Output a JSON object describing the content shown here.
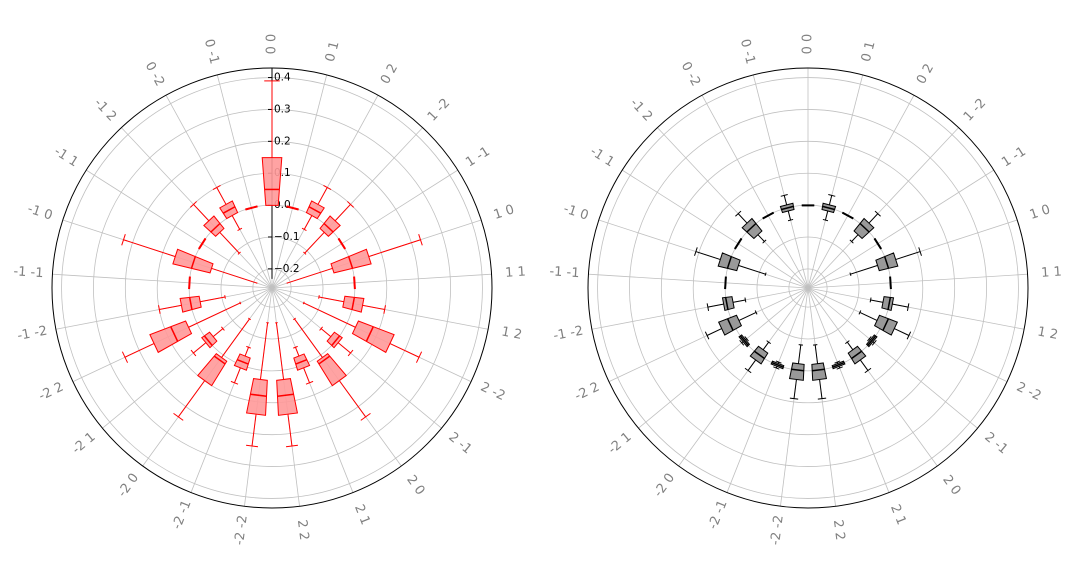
{
  "chart_data": [
    {
      "type": "boxplot-polar",
      "title": "",
      "categories": [
        "0 0",
        "0 1",
        "0 2",
        "1 -2",
        "1 -1",
        "1 0",
        "1 1",
        "1 2",
        "2 -2",
        "2 -1",
        "2 0",
        "2 1",
        "2 2",
        "-2 -2",
        "-2 -1",
        "-2 0",
        "-2 1",
        "-2 2",
        "-1 -2",
        "-1 -1",
        "-1 0",
        "-1 1",
        "-1 2",
        "0 -2",
        "0 -1"
      ],
      "stats_order": [
        "whislo",
        "q1",
        "median",
        "q3",
        "whishi"
      ],
      "boxes": [
        [
          0,
          0,
          0.05,
          0.15,
          0.39
        ],
        [
          0,
          0,
          0,
          0,
          0
        ],
        [
          -0.05,
          0,
          0.02,
          0.04,
          0.1
        ],
        [
          -0.11,
          -0.02,
          0,
          0.03,
          0.1
        ],
        [
          0,
          0,
          0,
          0,
          0
        ],
        [
          -0.21,
          -0.06,
          0,
          0.06,
          0.23
        ],
        [
          0,
          0,
          0,
          0,
          0
        ],
        [
          -0.11,
          -0.03,
          0,
          0.03,
          0.1
        ],
        [
          -0.15,
          0.03,
          0.08,
          0.15,
          0.25
        ],
        [
          -0.06,
          -0.02,
          0,
          0.01,
          0.06
        ],
        [
          -0.14,
          0.01,
          0.02,
          0.1,
          0.24
        ],
        [
          -0.06,
          -0.03,
          -0.01,
          0.01,
          0.06
        ],
        [
          -0.15,
          0.03,
          0.08,
          0.14,
          0.24
        ],
        [
          -0.15,
          0.03,
          0.08,
          0.14,
          0.24
        ],
        [
          -0.06,
          -0.03,
          -0.01,
          0.01,
          0.06
        ],
        [
          -0.14,
          0.01,
          0.02,
          0.1,
          0.24
        ],
        [
          -0.06,
          -0.02,
          0,
          0.01,
          0.06
        ],
        [
          -0.15,
          0.03,
          0.08,
          0.15,
          0.25
        ],
        [
          -0.11,
          -0.03,
          0,
          0.03,
          0.1
        ],
        [
          0,
          0,
          0,
          0,
          0
        ],
        [
          -0.21,
          -0.06,
          0,
          0.06,
          0.23
        ],
        [
          0,
          0,
          0,
          0,
          0
        ],
        [
          -0.11,
          -0.02,
          0,
          0.03,
          0.1
        ],
        [
          -0.05,
          0,
          0.02,
          0.04,
          0.1
        ],
        [
          0,
          0,
          0,
          0,
          0
        ]
      ],
      "rlim": [
        -0.26,
        0.43
      ],
      "rticks": [
        "−0.2",
        "−0.1",
        "0.0",
        "0.1",
        "0.2",
        "0.3",
        "0.4"
      ],
      "rtick_values": [
        -0.2,
        -0.1,
        0.0,
        0.1,
        0.2,
        0.3,
        0.4
      ],
      "show_rtick_labels": true,
      "grid": true,
      "colors": {
        "edge": "#ff0000",
        "fill": "#ff9999",
        "grid": "#c0c0c0",
        "label": "#808080"
      }
    },
    {
      "type": "boxplot-polar",
      "title": "",
      "categories": [
        "0 0",
        "0 1",
        "0 2",
        "1 -2",
        "1 -1",
        "1 0",
        "1 1",
        "1 2",
        "2 -2",
        "2 -1",
        "2 0",
        "2 1",
        "2 2",
        "-2 -2",
        "-2 -1",
        "-2 0",
        "-2 1",
        "-2 2",
        "-1 -2",
        "-1 -1",
        "-1 0",
        "-1 1",
        "-1 2",
        "0 -2",
        "0 -1"
      ],
      "stats_order": [
        "whislo",
        "q1",
        "median",
        "q3",
        "whishi"
      ],
      "boxes": [
        [
          0,
          0,
          0,
          0,
          0
        ],
        [
          -0.04,
          -0.01,
          0,
          0.01,
          0.04
        ],
        [
          0,
          0,
          0,
          0,
          0
        ],
        [
          -0.06,
          -0.03,
          0,
          0.02,
          0.06
        ],
        [
          0,
          0,
          0,
          0,
          0
        ],
        [
          -0.12,
          -0.03,
          0,
          0.03,
          0.11
        ],
        [
          0,
          0,
          0,
          0,
          0
        ],
        [
          -0.06,
          -0.02,
          0,
          0.01,
          0.06
        ],
        [
          -0.08,
          -0.02,
          0.01,
          0.04,
          0.09
        ],
        [
          -0.01,
          -0.005,
          0,
          0.005,
          0.01
        ],
        [
          -0.05,
          -0.02,
          0,
          0.02,
          0.06
        ],
        [
          -0.01,
          -0.005,
          0,
          0.005,
          0.01
        ],
        [
          -0.08,
          -0.02,
          0,
          0.03,
          0.09
        ],
        [
          -0.08,
          -0.02,
          0,
          0.03,
          0.09
        ],
        [
          -0.01,
          -0.005,
          0,
          0.005,
          0.01
        ],
        [
          -0.05,
          -0.02,
          0,
          0.02,
          0.06
        ],
        [
          -0.01,
          -0.005,
          0,
          0.005,
          0.01
        ],
        [
          -0.08,
          -0.02,
          0.01,
          0.04,
          0.09
        ],
        [
          -0.06,
          -0.02,
          0,
          0.01,
          0.06
        ],
        [
          0,
          0,
          0,
          0,
          0
        ],
        [
          -0.12,
          -0.03,
          0,
          0.03,
          0.11
        ],
        [
          0,
          0,
          0,
          0,
          0
        ],
        [
          -0.06,
          -0.03,
          0,
          0.02,
          0.06
        ],
        [
          0,
          0,
          0,
          0,
          0
        ],
        [
          -0.04,
          -0.01,
          0,
          0.01,
          0.04
        ]
      ],
      "rlim": [
        -0.26,
        0.43
      ],
      "rtick_values": [
        -0.2,
        -0.1,
        0.0,
        0.1,
        0.2,
        0.3,
        0.4
      ],
      "show_rtick_labels": false,
      "grid": true,
      "colors": {
        "edge": "#000000",
        "fill": "#999999",
        "grid": "#c0c0c0",
        "label": "#808080"
      }
    }
  ]
}
